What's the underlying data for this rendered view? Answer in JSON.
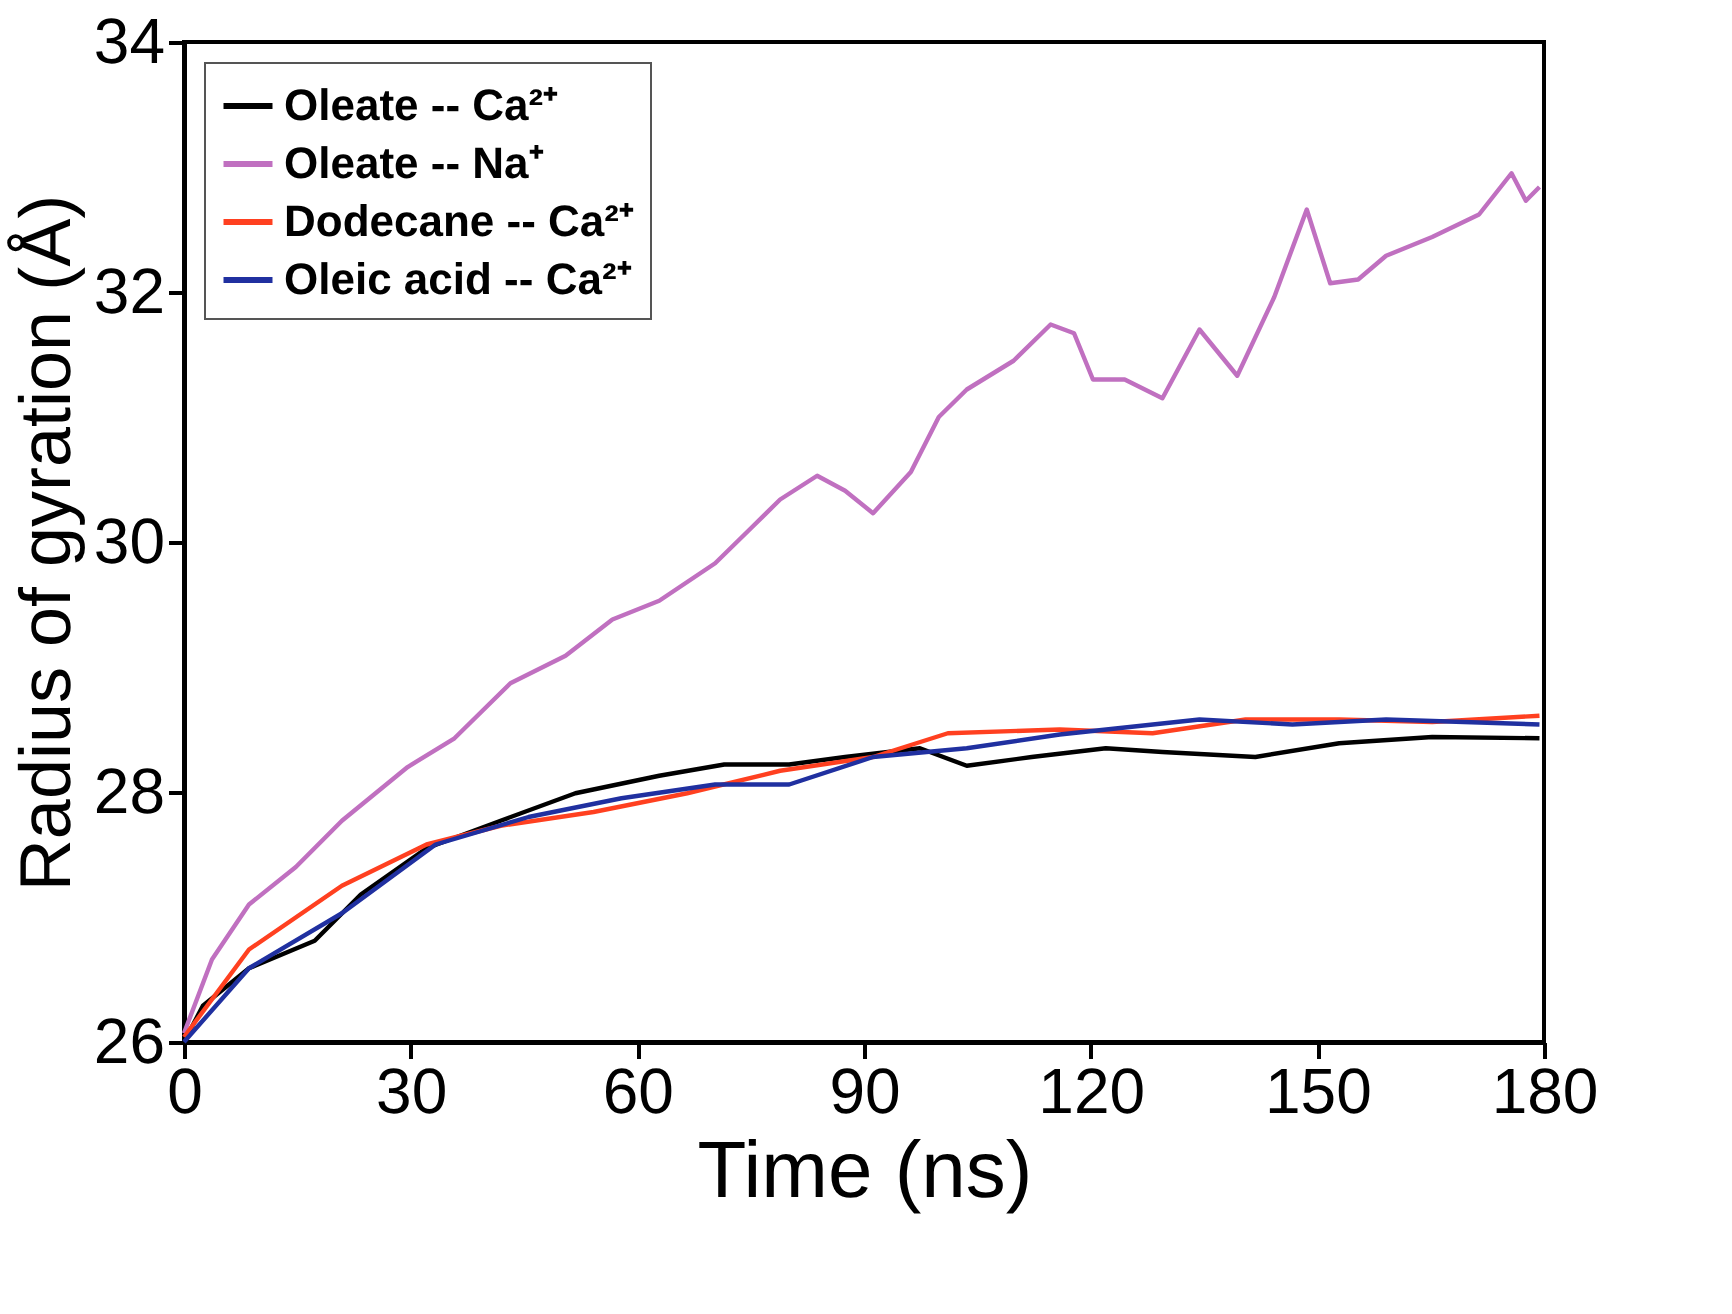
{
  "chart_data": {
    "type": "line",
    "xlabel": "Time (ns)",
    "ylabel": "Radius of gyration (Å)",
    "xlim": [
      0,
      180
    ],
    "xticks": [
      0,
      30,
      60,
      90,
      120,
      150,
      180
    ],
    "ylim": [
      26,
      34
    ],
    "yticks": [
      26,
      28,
      30,
      32,
      34
    ],
    "grid": false,
    "legend": "top left",
    "line_style": "solid",
    "marker": "none",
    "series": [
      {
        "name": "Oleate -- Ca²⁺",
        "color": "#000000",
        "x": [
          0,
          2.5,
          8.6,
          17.3,
          23.4,
          32.1,
          41.9,
          51.8,
          62.9,
          71.5,
          80.1,
          87.5,
          97.4,
          103.6,
          112.2,
          122.0,
          129.5,
          141.8,
          152.9,
          165.2,
          179.4
        ],
        "values": [
          26.0,
          26.29,
          26.59,
          26.81,
          27.18,
          27.55,
          27.77,
          27.99,
          28.13,
          28.22,
          28.22,
          28.28,
          28.35,
          28.21,
          28.28,
          28.35,
          28.32,
          28.28,
          28.39,
          28.44,
          28.43
        ]
      },
      {
        "name": "Oleate -- Na⁺",
        "color": "#c070c0",
        "x": [
          0,
          3.7,
          8.6,
          14.8,
          20.9,
          29.6,
          35.8,
          43.2,
          50.5,
          56.7,
          62.9,
          70.3,
          75.2,
          78.9,
          83.8,
          87.5,
          91.2,
          96.2,
          99.9,
          103.6,
          109.8,
          114.7,
          117.8,
          120.3,
          124.5,
          129.5,
          134.4,
          139.4,
          144.3,
          148.6,
          151.7,
          155.4,
          159.1,
          165.2,
          171.4,
          175.7,
          177.6,
          179.4
        ],
        "values": [
          26.07,
          26.66,
          27.1,
          27.4,
          27.77,
          28.2,
          28.43,
          28.87,
          29.09,
          29.38,
          29.53,
          29.83,
          30.12,
          30.34,
          30.53,
          30.41,
          30.23,
          30.56,
          31.0,
          31.22,
          31.45,
          31.74,
          31.67,
          31.3,
          31.3,
          31.15,
          31.7,
          31.33,
          31.96,
          32.66,
          32.07,
          32.1,
          32.29,
          32.44,
          32.62,
          32.95,
          32.73,
          32.84
        ]
      },
      {
        "name": "Dodecane -- Ca²⁺",
        "color": "#ff4020",
        "x": [
          0,
          8.6,
          20.9,
          32.1,
          41.9,
          54.2,
          66.6,
          78.9,
          91.2,
          101.1,
          115.9,
          128.2,
          140.5,
          152.9,
          165.2,
          179.4
        ],
        "values": [
          26.04,
          26.74,
          27.25,
          27.58,
          27.73,
          27.84,
          27.99,
          28.17,
          28.28,
          28.47,
          28.5,
          28.47,
          28.58,
          28.58,
          28.56,
          28.61
        ]
      },
      {
        "name": "Oleic acid -- Ca²⁺",
        "color": "#2030a0",
        "x": [
          0,
          8.6,
          20.9,
          33.3,
          45.6,
          57.9,
          70.3,
          80.1,
          91.2,
          103.6,
          115.9,
          134.4,
          146.7,
          159.1,
          179.4
        ],
        "values": [
          26.0,
          26.59,
          27.03,
          27.58,
          27.8,
          27.95,
          28.06,
          28.06,
          28.28,
          28.35,
          28.46,
          28.58,
          28.54,
          28.58,
          28.54
        ]
      }
    ]
  }
}
